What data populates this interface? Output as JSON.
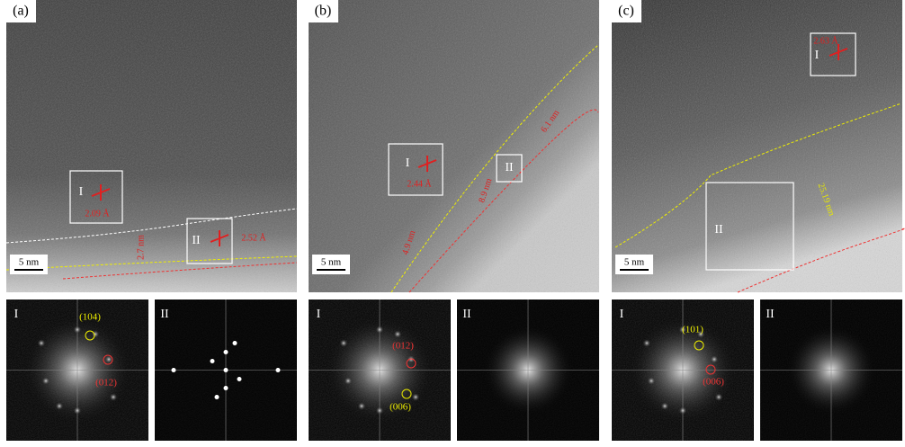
{
  "panels": [
    {
      "label": "(a)",
      "scale_bar": "5 nm",
      "regions": [
        {
          "label": "I",
          "d_spacing": "2.09 Å"
        },
        {
          "label": "II",
          "d_spacing": "2.52 Å"
        }
      ],
      "thickness": [
        "2.7 nm"
      ],
      "fft": [
        {
          "label": "I",
          "spots": [
            "(104)",
            "(012)"
          ]
        },
        {
          "label": "II"
        }
      ]
    },
    {
      "label": "(b)",
      "scale_bar": "5 nm",
      "regions": [
        {
          "label": "I",
          "d_spacing": "2.44 Å"
        },
        {
          "label": "II"
        }
      ],
      "thickness": [
        "6.1 nm",
        "8.9 nm",
        "4.9 nm"
      ],
      "fft": [
        {
          "label": "I",
          "spots": [
            "(012)",
            "(006)"
          ]
        },
        {
          "label": "II"
        }
      ]
    },
    {
      "label": "(c)",
      "scale_bar": "5 nm",
      "regions": [
        {
          "label": "I",
          "d_spacing": "2.63 Å"
        },
        {
          "label": "II"
        }
      ],
      "thickness": [
        "25.19 nm"
      ],
      "fft": [
        {
          "label": "I",
          "spots": [
            "(101)",
            "(006)"
          ]
        },
        {
          "label": "II"
        }
      ]
    }
  ]
}
